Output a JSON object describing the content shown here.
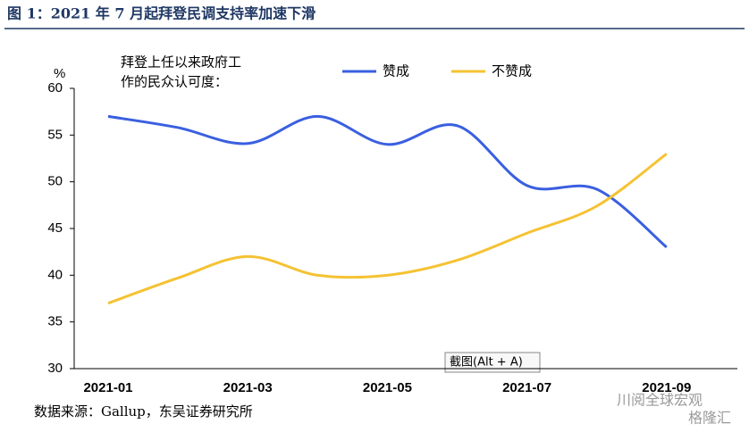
{
  "chart_data": {
    "type": "line",
    "title": "图 1：2021 年 7 月起拜登民调支持率加速下滑",
    "y_unit": "%",
    "annotation": [
      "拜登上任以来政府工",
      "作的民众认可度："
    ],
    "categories": [
      "2021-01",
      null,
      "2021-03",
      null,
      "2021-05",
      null,
      "2021-07",
      null,
      "2021-09"
    ],
    "series": [
      {
        "name": "赞成",
        "color": "#3a5fe0",
        "values": [
          57,
          55.8,
          54.1,
          57,
          54,
          56,
          49.6,
          49.2,
          43
        ]
      },
      {
        "name": "不赞成",
        "color": "#f5c233",
        "values": [
          37,
          39.7,
          42,
          40,
          40,
          41.6,
          44.5,
          47.4,
          53
        ]
      }
    ],
    "ylim": [
      30,
      60
    ],
    "yticks": [
      30,
      35,
      40,
      45,
      50,
      55,
      60
    ],
    "smooth": true,
    "grid": false,
    "legend": "top",
    "source": "数据来源：Gallup，东吴证券研究所",
    "tooltip": "截图(Alt + A)",
    "watermark": [
      "川阅全球宏观",
      "格隆汇"
    ]
  }
}
